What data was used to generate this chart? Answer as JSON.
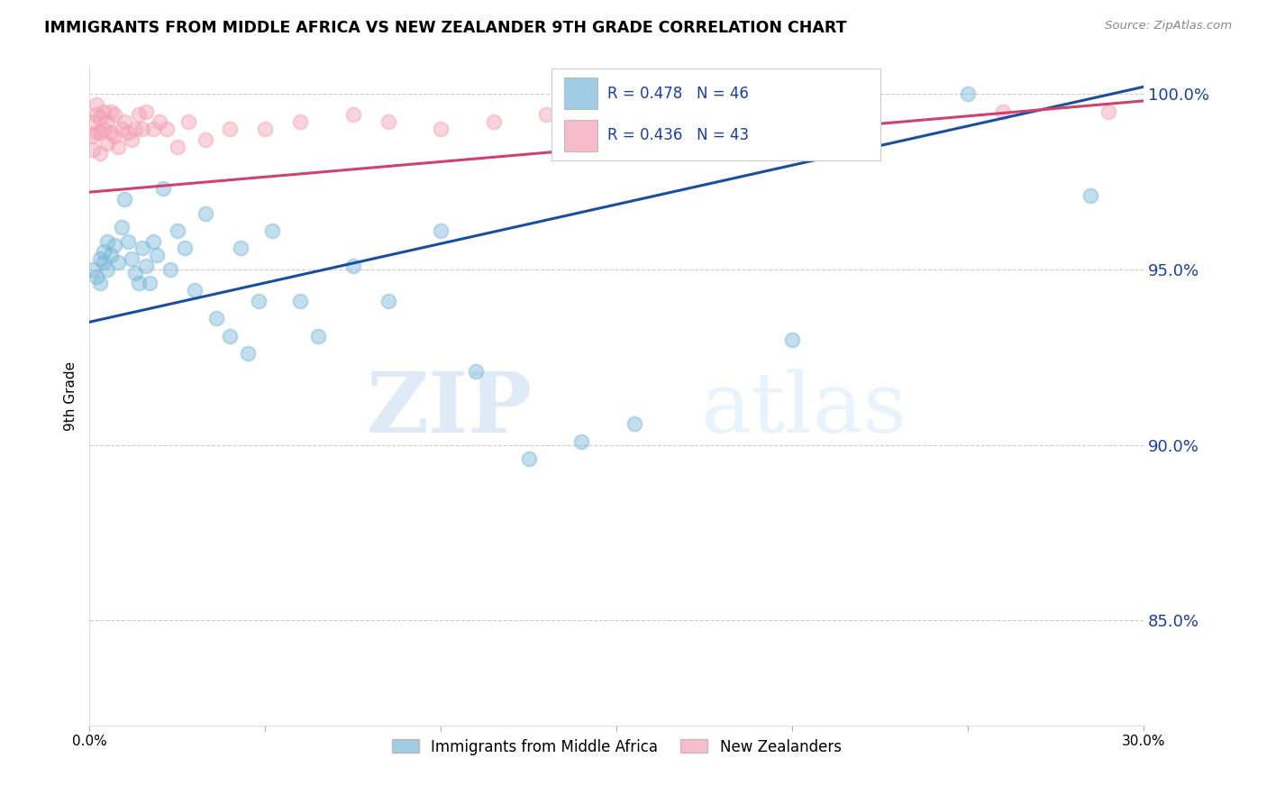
{
  "title": "IMMIGRANTS FROM MIDDLE AFRICA VS NEW ZEALANDER 9TH GRADE CORRELATION CHART",
  "source": "Source: ZipAtlas.com",
  "ylabel": "9th Grade",
  "ytick_vals": [
    1.0,
    0.95,
    0.9,
    0.85
  ],
  "ytick_labels": [
    "100.0%",
    "95.0%",
    "90.0%",
    "85.0%"
  ],
  "legend_blue_label": "Immigrants from Middle Africa",
  "legend_pink_label": "New Zealanders",
  "legend_R_blue": "R = 0.478",
  "legend_N_blue": "N = 46",
  "legend_R_pink": "R = 0.436",
  "legend_N_pink": "N = 43",
  "blue_color": "#7ab8d9",
  "pink_color": "#f4a0b5",
  "blue_line_color": "#1a4fa0",
  "pink_line_color": "#d04070",
  "legend_text_color": "#1a3fa0",
  "watermark_zip": "ZIP",
  "watermark_atlas": "atlas",
  "xlim": [
    0.0,
    0.3
  ],
  "ylim": [
    0.82,
    1.008
  ],
  "blue_x": [
    0.001,
    0.002,
    0.003,
    0.003,
    0.004,
    0.004,
    0.005,
    0.005,
    0.006,
    0.007,
    0.008,
    0.009,
    0.01,
    0.011,
    0.012,
    0.013,
    0.014,
    0.015,
    0.016,
    0.017,
    0.018,
    0.019,
    0.021,
    0.023,
    0.025,
    0.027,
    0.03,
    0.033,
    0.036,
    0.04,
    0.043,
    0.045,
    0.048,
    0.052,
    0.06,
    0.065,
    0.075,
    0.085,
    0.1,
    0.11,
    0.125,
    0.14,
    0.155,
    0.2,
    0.25,
    0.285
  ],
  "blue_y": [
    0.95,
    0.948,
    0.953,
    0.946,
    0.955,
    0.952,
    0.958,
    0.95,
    0.954,
    0.957,
    0.952,
    0.962,
    0.97,
    0.958,
    0.953,
    0.949,
    0.946,
    0.956,
    0.951,
    0.946,
    0.958,
    0.954,
    0.973,
    0.95,
    0.961,
    0.956,
    0.944,
    0.966,
    0.936,
    0.931,
    0.956,
    0.926,
    0.941,
    0.961,
    0.941,
    0.931,
    0.951,
    0.941,
    0.961,
    0.921,
    0.896,
    0.901,
    0.906,
    0.93,
    1.0,
    0.971
  ],
  "pink_x": [
    0.001,
    0.001,
    0.001,
    0.002,
    0.002,
    0.002,
    0.003,
    0.003,
    0.003,
    0.004,
    0.004,
    0.005,
    0.005,
    0.006,
    0.006,
    0.007,
    0.007,
    0.008,
    0.009,
    0.01,
    0.011,
    0.012,
    0.013,
    0.014,
    0.015,
    0.016,
    0.018,
    0.02,
    0.022,
    0.025,
    0.028,
    0.033,
    0.04,
    0.05,
    0.06,
    0.075,
    0.085,
    0.1,
    0.115,
    0.13,
    0.145,
    0.26,
    0.29
  ],
  "pink_y": [
    0.992,
    0.988,
    0.984,
    0.997,
    0.994,
    0.989,
    0.993,
    0.989,
    0.983,
    0.99,
    0.995,
    0.992,
    0.986,
    0.995,
    0.989,
    0.994,
    0.988,
    0.985,
    0.99,
    0.992,
    0.989,
    0.987,
    0.99,
    0.994,
    0.99,
    0.995,
    0.99,
    0.992,
    0.99,
    0.985,
    0.992,
    0.987,
    0.99,
    0.99,
    0.992,
    0.994,
    0.992,
    0.99,
    0.992,
    0.994,
    0.992,
    0.995,
    0.995
  ]
}
